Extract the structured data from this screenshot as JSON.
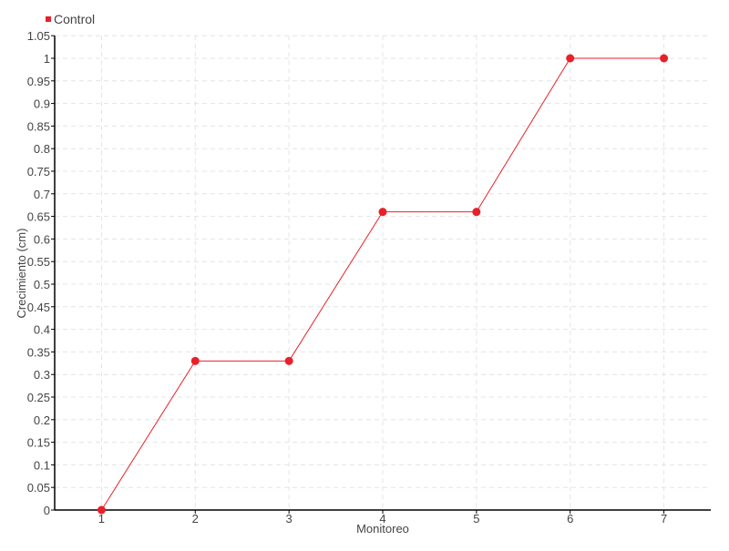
{
  "chart_data": {
    "type": "line",
    "title": "",
    "xlabel": "Monitoreo",
    "ylabel": "Crecimiento (cm)",
    "x": [
      1,
      2,
      3,
      4,
      5,
      6,
      7
    ],
    "categories": [
      "1",
      "2",
      "3",
      "4",
      "5",
      "6",
      "7"
    ],
    "series": [
      {
        "name": "Control",
        "values": [
          0,
          0.33,
          0.33,
          0.66,
          0.66,
          1,
          1
        ],
        "color": "#e8202a"
      }
    ],
    "ylim": [
      0,
      1.05
    ],
    "xlim": [
      0.5,
      7.5
    ],
    "yticks": [
      "0",
      "0.05",
      "0.1",
      "0.15",
      "0.2",
      "0.25",
      "0.3",
      "0.35",
      "0.4",
      "0.45",
      "0.5",
      "0.55",
      "0.6",
      "0.65",
      "0.7",
      "0.75",
      "0.8",
      "0.85",
      "0.9",
      "0.95",
      "1",
      "1.05"
    ],
    "grid": true,
    "legend": "top-left"
  }
}
